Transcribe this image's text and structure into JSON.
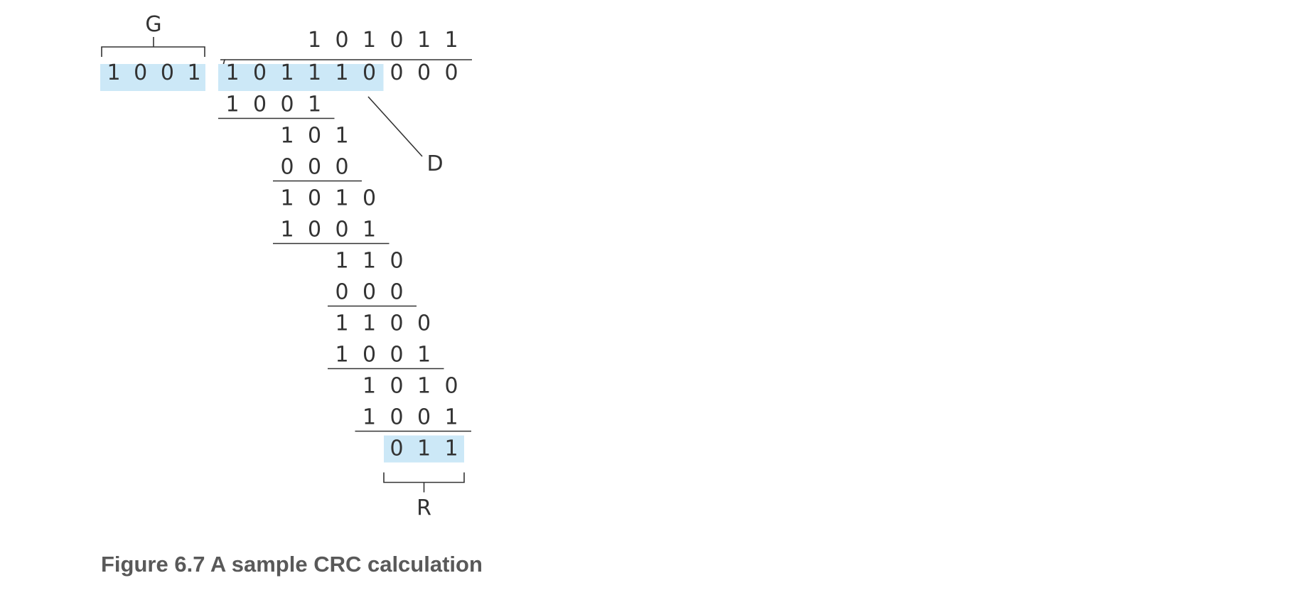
{
  "figure": {
    "generator": "1001",
    "dividend": "101110000",
    "quotient": "101011",
    "data_bits": "101110",
    "remainder": "011",
    "labels": {
      "generator": "G",
      "data": "D",
      "remainder": "R"
    },
    "steps": [
      {
        "value": "1001",
        "rule": true
      },
      {
        "value": "101",
        "rule": false
      },
      {
        "value": "000",
        "rule": true
      },
      {
        "value": "1010",
        "rule": false
      },
      {
        "value": "1001",
        "rule": true
      },
      {
        "value": "110",
        "rule": false
      },
      {
        "value": "000",
        "rule": true
      },
      {
        "value": "1100",
        "rule": false
      },
      {
        "value": "1001",
        "rule": true
      },
      {
        "value": "1010",
        "rule": false
      },
      {
        "value": "1001",
        "rule": true
      },
      {
        "value": "011",
        "rule": false
      }
    ],
    "highlight_color": "#cce8f7",
    "ink_color": "#333333"
  },
  "caption": "Figure 6.7 A sample CRC calculation"
}
